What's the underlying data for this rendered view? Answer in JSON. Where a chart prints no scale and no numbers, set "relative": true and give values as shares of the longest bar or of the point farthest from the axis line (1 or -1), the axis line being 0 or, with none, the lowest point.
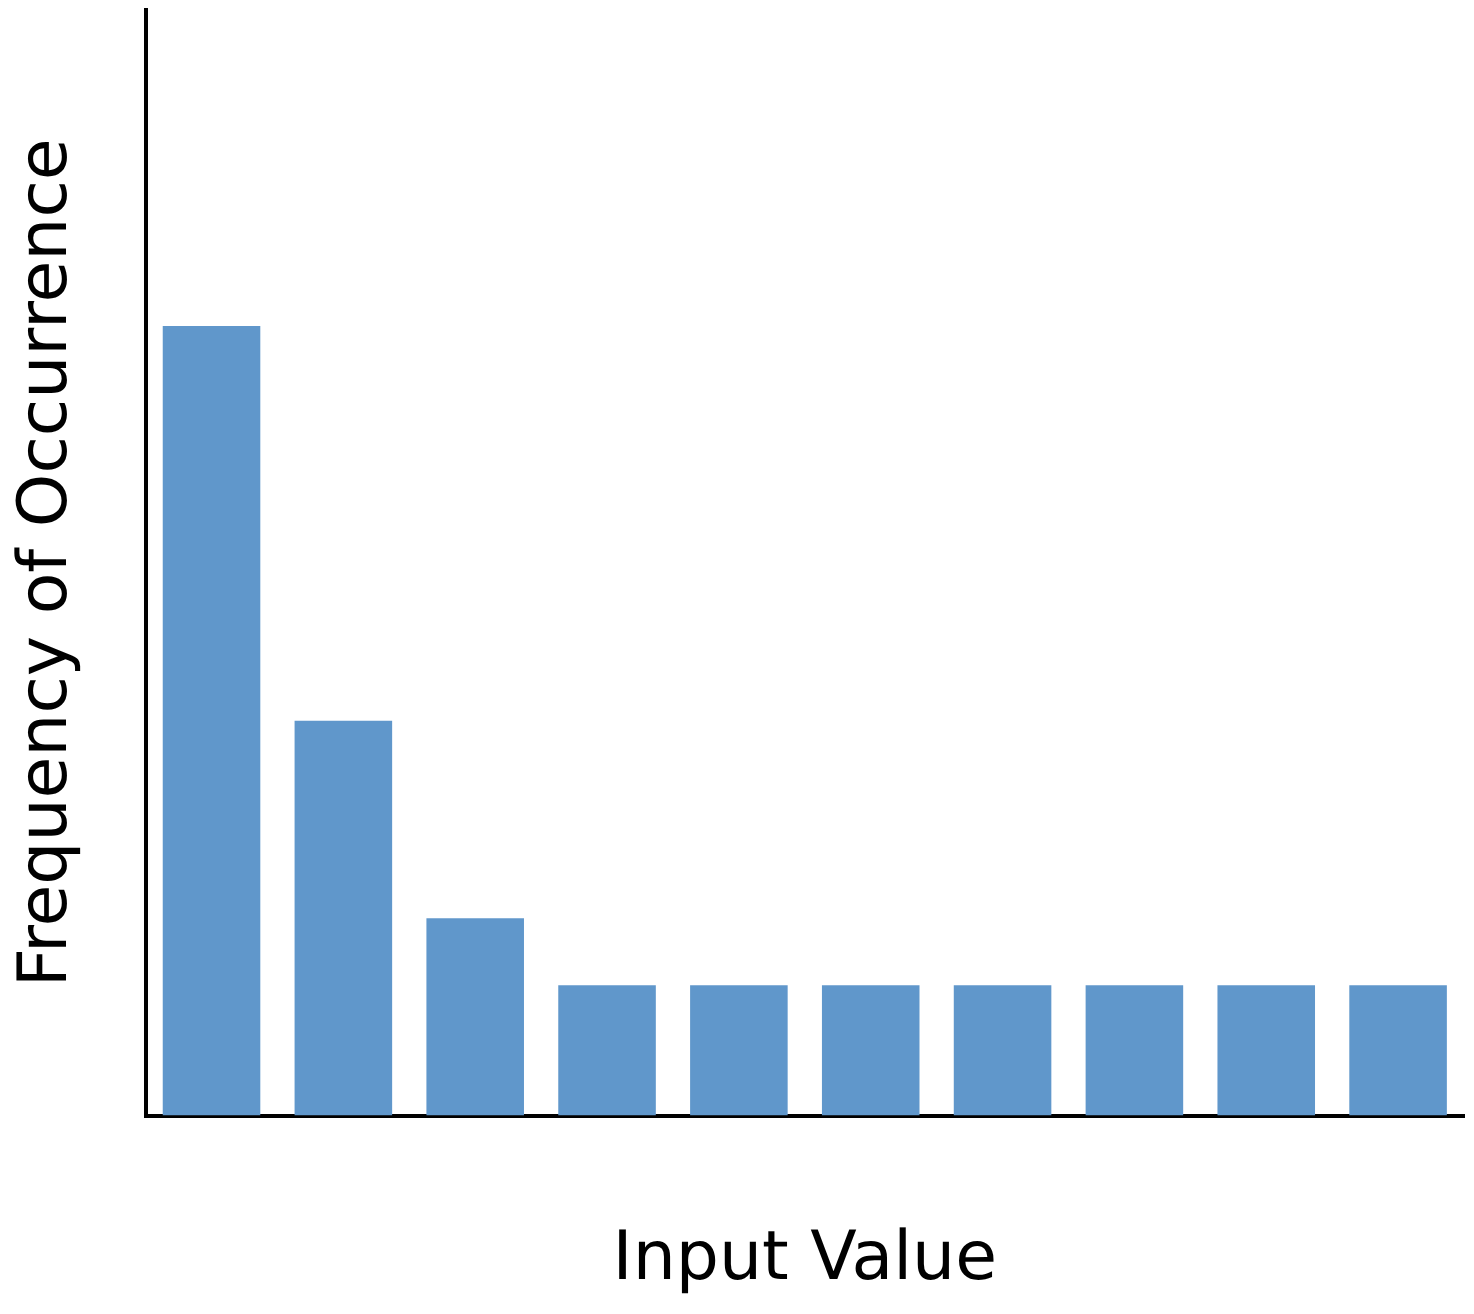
{
  "chart_data": {
    "type": "bar",
    "xlabel": "Input Value",
    "ylabel": "Frequency of Occurrence",
    "relative": true,
    "categories": [
      null,
      null,
      null,
      null,
      null,
      null,
      null,
      null,
      null,
      null
    ],
    "series": [
      {
        "color": "#6097cb",
        "values": [
          1,
          0.5,
          0.25,
          0.165,
          0.165,
          0.165,
          0.165,
          0.165,
          0.165,
          0.165
        ]
      }
    ],
    "grid": false,
    "legend": false
  }
}
